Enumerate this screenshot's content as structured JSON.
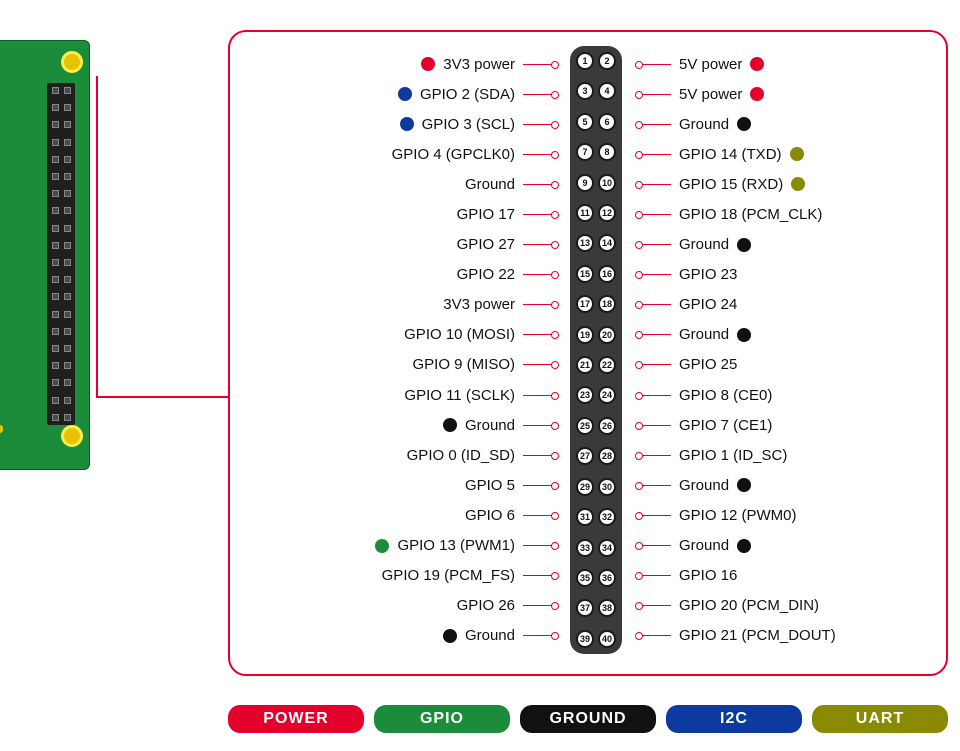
{
  "colors": {
    "power": "#e4002b",
    "gpio": "#1a8c3a",
    "ground": "#111111",
    "i2c": "#0d3a9e",
    "uart": "#8a8a00",
    "board_green": "#1a8c3a",
    "panel_border": "#e4002b",
    "pin_header": "#3a3a3a"
  },
  "legend": [
    {
      "label": "POWER",
      "bg": "#e4002b"
    },
    {
      "label": "GPIO",
      "bg": "#1a8c3a"
    },
    {
      "label": "GROUND",
      "bg": "#111111"
    },
    {
      "label": "I2C",
      "bg": "#0d3a9e"
    },
    {
      "label": "UART",
      "bg": "#8a8a00"
    }
  ],
  "pins": [
    {
      "n": 1,
      "label": "3V3 power",
      "dot": "#e4002b"
    },
    {
      "n": 2,
      "label": "5V power",
      "dot": "#e4002b"
    },
    {
      "n": 3,
      "label": "GPIO 2 (SDA)",
      "dot": "#0d3a9e"
    },
    {
      "n": 4,
      "label": "5V power",
      "dot": "#e4002b"
    },
    {
      "n": 5,
      "label": "GPIO 3 (SCL)",
      "dot": "#0d3a9e"
    },
    {
      "n": 6,
      "label": "Ground",
      "dot": "#111111"
    },
    {
      "n": 7,
      "label": "GPIO 4 (GPCLK0)",
      "dot": null
    },
    {
      "n": 8,
      "label": "GPIO 14 (TXD)",
      "dot": "#8a8a00"
    },
    {
      "n": 9,
      "label": "Ground",
      "dot": null
    },
    {
      "n": 10,
      "label": "GPIO 15 (RXD)",
      "dot": "#8a8a00"
    },
    {
      "n": 11,
      "label": "GPIO 17",
      "dot": null
    },
    {
      "n": 12,
      "label": "GPIO 18 (PCM_CLK)",
      "dot": null
    },
    {
      "n": 13,
      "label": "GPIO 27",
      "dot": null
    },
    {
      "n": 14,
      "label": "Ground",
      "dot": "#111111"
    },
    {
      "n": 15,
      "label": "GPIO 22",
      "dot": null
    },
    {
      "n": 16,
      "label": "GPIO 23",
      "dot": null
    },
    {
      "n": 17,
      "label": "3V3 power",
      "dot": null
    },
    {
      "n": 18,
      "label": "GPIO 24",
      "dot": null
    },
    {
      "n": 19,
      "label": "GPIO 10 (MOSI)",
      "dot": null
    },
    {
      "n": 20,
      "label": "Ground",
      "dot": "#111111"
    },
    {
      "n": 21,
      "label": "GPIO 9 (MISO)",
      "dot": null
    },
    {
      "n": 22,
      "label": "GPIO 25",
      "dot": null
    },
    {
      "n": 23,
      "label": "GPIO 11 (SCLK)",
      "dot": null
    },
    {
      "n": 24,
      "label": "GPIO 8 (CE0)",
      "dot": null
    },
    {
      "n": 25,
      "label": "Ground",
      "dot": "#111111"
    },
    {
      "n": 26,
      "label": "GPIO 7 (CE1)",
      "dot": null
    },
    {
      "n": 27,
      "label": "GPIO 0 (ID_SD)",
      "dot": null
    },
    {
      "n": 28,
      "label": "GPIO 1 (ID_SC)",
      "dot": null
    },
    {
      "n": 29,
      "label": "GPIO 5",
      "dot": null
    },
    {
      "n": 30,
      "label": "Ground",
      "dot": "#111111"
    },
    {
      "n": 31,
      "label": "GPIO 6",
      "dot": null
    },
    {
      "n": 32,
      "label": "GPIO 12 (PWM0)",
      "dot": null
    },
    {
      "n": 33,
      "label": "GPIO 13 (PWM1)",
      "dot": "#1a8c3a"
    },
    {
      "n": 34,
      "label": "Ground",
      "dot": "#111111"
    },
    {
      "n": 35,
      "label": "GPIO 19 (PCM_FS)",
      "dot": null
    },
    {
      "n": 36,
      "label": "GPIO 16",
      "dot": null
    },
    {
      "n": 37,
      "label": "GPIO 26",
      "dot": null
    },
    {
      "n": 38,
      "label": "GPIO 20 (PCM_DIN)",
      "dot": null
    },
    {
      "n": 39,
      "label": "Ground",
      "dot": "#111111"
    },
    {
      "n": 40,
      "label": "GPIO 21 (PCM_DOUT)",
      "dot": null
    }
  ]
}
